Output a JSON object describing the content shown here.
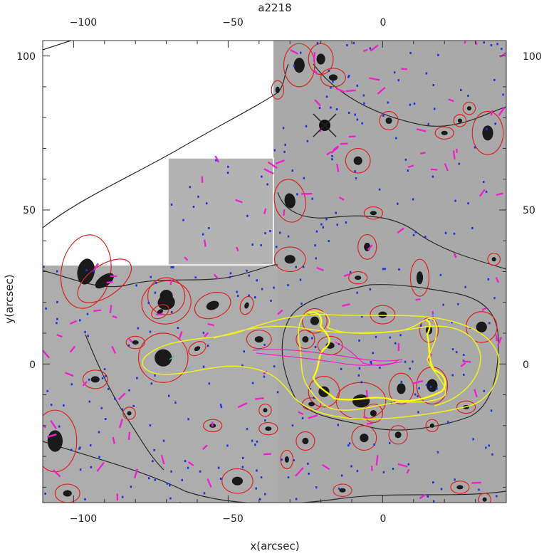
{
  "chart_data": {
    "type": "scatter",
    "title": "a2218",
    "xlabel": "x(arcsec)",
    "ylabel": "y(arcsec)",
    "xlim": [
      -110,
      40
    ],
    "ylim": [
      -45,
      105
    ],
    "xticks": [
      -100,
      -50,
      0
    ],
    "yticks": [
      0,
      50,
      100
    ],
    "xtick_labels": [
      "−100",
      "−50",
      "0"
    ],
    "ytick_labels": [
      "0",
      "50",
      "100"
    ],
    "grid": false,
    "background": "greyscale cluster image (Abell 2218)",
    "colors": {
      "galaxy_ellipses": "#dd2222",
      "critical_curves": "#eeee22",
      "contours": "#222222",
      "shear_sticks": "#ee22cc",
      "weak_points": "#2233dd",
      "caustic_lines": "#33cccc"
    },
    "galaxies": [
      {
        "x": -96,
        "y": 30,
        "a": 12,
        "b": 8,
        "angle": 80
      },
      {
        "x": -90,
        "y": 27,
        "a": 10,
        "b": 5,
        "angle": 35
      },
      {
        "x": -70,
        "y": 22,
        "a": 6,
        "b": 6,
        "angle": 0
      },
      {
        "x": -70,
        "y": 20,
        "a": 8,
        "b": 7,
        "angle": 10
      },
      {
        "x": -72,
        "y": 17,
        "a": 3,
        "b": 2,
        "angle": 30
      },
      {
        "x": -55,
        "y": 19,
        "a": 6,
        "b": 4,
        "angle": 20
      },
      {
        "x": -44,
        "y": 19,
        "a": 3,
        "b": 2,
        "angle": 70
      },
      {
        "x": -80,
        "y": 7,
        "a": 3,
        "b": 2,
        "angle": 0
      },
      {
        "x": -71,
        "y": 2,
        "a": 8,
        "b": 8,
        "angle": 0
      },
      {
        "x": -93,
        "y": -5,
        "a": 4,
        "b": 3,
        "angle": 0
      },
      {
        "x": -60,
        "y": 5,
        "a": 3,
        "b": 2,
        "angle": 30
      },
      {
        "x": -106,
        "y": -25,
        "a": 7,
        "b": 10,
        "angle": 0
      },
      {
        "x": -102,
        "y": -42,
        "a": 4,
        "b": 3,
        "angle": 0
      },
      {
        "x": -82,
        "y": -16,
        "a": 2,
        "b": 2,
        "angle": 0
      },
      {
        "x": -55,
        "y": -20,
        "a": 3,
        "b": 2,
        "angle": 0
      },
      {
        "x": -47,
        "y": -38,
        "a": 5,
        "b": 4,
        "angle": 0
      },
      {
        "x": -40,
        "y": 8,
        "a": 4,
        "b": 3,
        "angle": 0
      },
      {
        "x": -30,
        "y": 53,
        "a": 5,
        "b": 7,
        "angle": 10
      },
      {
        "x": -30,
        "y": 34,
        "a": 5,
        "b": 4,
        "angle": 0
      },
      {
        "x": -27,
        "y": 97,
        "a": 5,
        "b": 7,
        "angle": 0
      },
      {
        "x": -20,
        "y": 99,
        "a": 4,
        "b": 5,
        "angle": 0
      },
      {
        "x": -16,
        "y": 93,
        "a": 4,
        "b": 3,
        "angle": 0
      },
      {
        "x": -34,
        "y": 89,
        "a": 2,
        "b": 3,
        "angle": 0
      },
      {
        "x": 2,
        "y": 79,
        "a": 3,
        "b": 3,
        "angle": 0
      },
      {
        "x": -8,
        "y": 66,
        "a": 4,
        "b": 4,
        "angle": 0
      },
      {
        "x": 34,
        "y": 75,
        "a": 5,
        "b": 7,
        "angle": 0
      },
      {
        "x": 28,
        "y": 83,
        "a": 2,
        "b": 2,
        "angle": 0
      },
      {
        "x": 25,
        "y": 79,
        "a": 2,
        "b": 2,
        "angle": 0
      },
      {
        "x": 20,
        "y": 75,
        "a": 3,
        "b": 2,
        "angle": 0
      },
      {
        "x": -3,
        "y": 49,
        "a": 3,
        "b": 2,
        "angle": 0
      },
      {
        "x": -5,
        "y": 38,
        "a": 3,
        "b": 4,
        "angle": 0
      },
      {
        "x": 12,
        "y": 28,
        "a": 3,
        "b": 6,
        "angle": 0
      },
      {
        "x": -8,
        "y": 28,
        "a": 3,
        "b": 2,
        "angle": 0
      },
      {
        "x": 36,
        "y": 34,
        "a": 2,
        "b": 2,
        "angle": 0
      },
      {
        "x": 32,
        "y": 12,
        "a": 5,
        "b": 5,
        "angle": 0
      },
      {
        "x": 0,
        "y": 16,
        "a": 4,
        "b": 3,
        "angle": 0
      },
      {
        "x": -22,
        "y": 14,
        "a": 4,
        "b": 4,
        "angle": 0
      },
      {
        "x": -25,
        "y": 8,
        "a": 3,
        "b": 3,
        "angle": 0
      },
      {
        "x": -17,
        "y": 6,
        "a": 4,
        "b": 3,
        "angle": 0
      },
      {
        "x": -19,
        "y": -9,
        "a": 5,
        "b": 5,
        "angle": 0
      },
      {
        "x": -23,
        "y": -13,
        "a": 3,
        "b": 2,
        "angle": 0
      },
      {
        "x": -7,
        "y": -12,
        "a": 8,
        "b": 6,
        "angle": 0
      },
      {
        "x": 6,
        "y": -8,
        "a": 4,
        "b": 5,
        "angle": 0
      },
      {
        "x": 16,
        "y": -7,
        "a": 5,
        "b": 6,
        "angle": 0
      },
      {
        "x": 15,
        "y": 11,
        "a": 3,
        "b": 4,
        "angle": 0
      },
      {
        "x": 27,
        "y": -14,
        "a": 3,
        "b": 2,
        "angle": 0
      },
      {
        "x": -3,
        "y": -16,
        "a": 3,
        "b": 3,
        "angle": 0
      },
      {
        "x": -6,
        "y": -24,
        "a": 4,
        "b": 4,
        "angle": 0
      },
      {
        "x": 5,
        "y": -23,
        "a": 3,
        "b": 3,
        "angle": 0
      },
      {
        "x": 16,
        "y": -20,
        "a": 2,
        "b": 2,
        "angle": 0
      },
      {
        "x": -37,
        "y": -21,
        "a": 3,
        "b": 2,
        "angle": 0
      },
      {
        "x": -38,
        "y": -15,
        "a": 2,
        "b": 2,
        "angle": 0
      },
      {
        "x": -25,
        "y": -25,
        "a": 3,
        "b": 3,
        "angle": 0
      },
      {
        "x": -31,
        "y": -31,
        "a": 2,
        "b": 3,
        "angle": 0
      },
      {
        "x": -13,
        "y": -41,
        "a": 3,
        "b": 2,
        "angle": 0
      },
      {
        "x": 25,
        "y": -40,
        "a": 3,
        "b": 2,
        "angle": 0
      },
      {
        "x": 33,
        "y": -44,
        "a": 2,
        "b": 2,
        "angle": 0
      }
    ]
  }
}
